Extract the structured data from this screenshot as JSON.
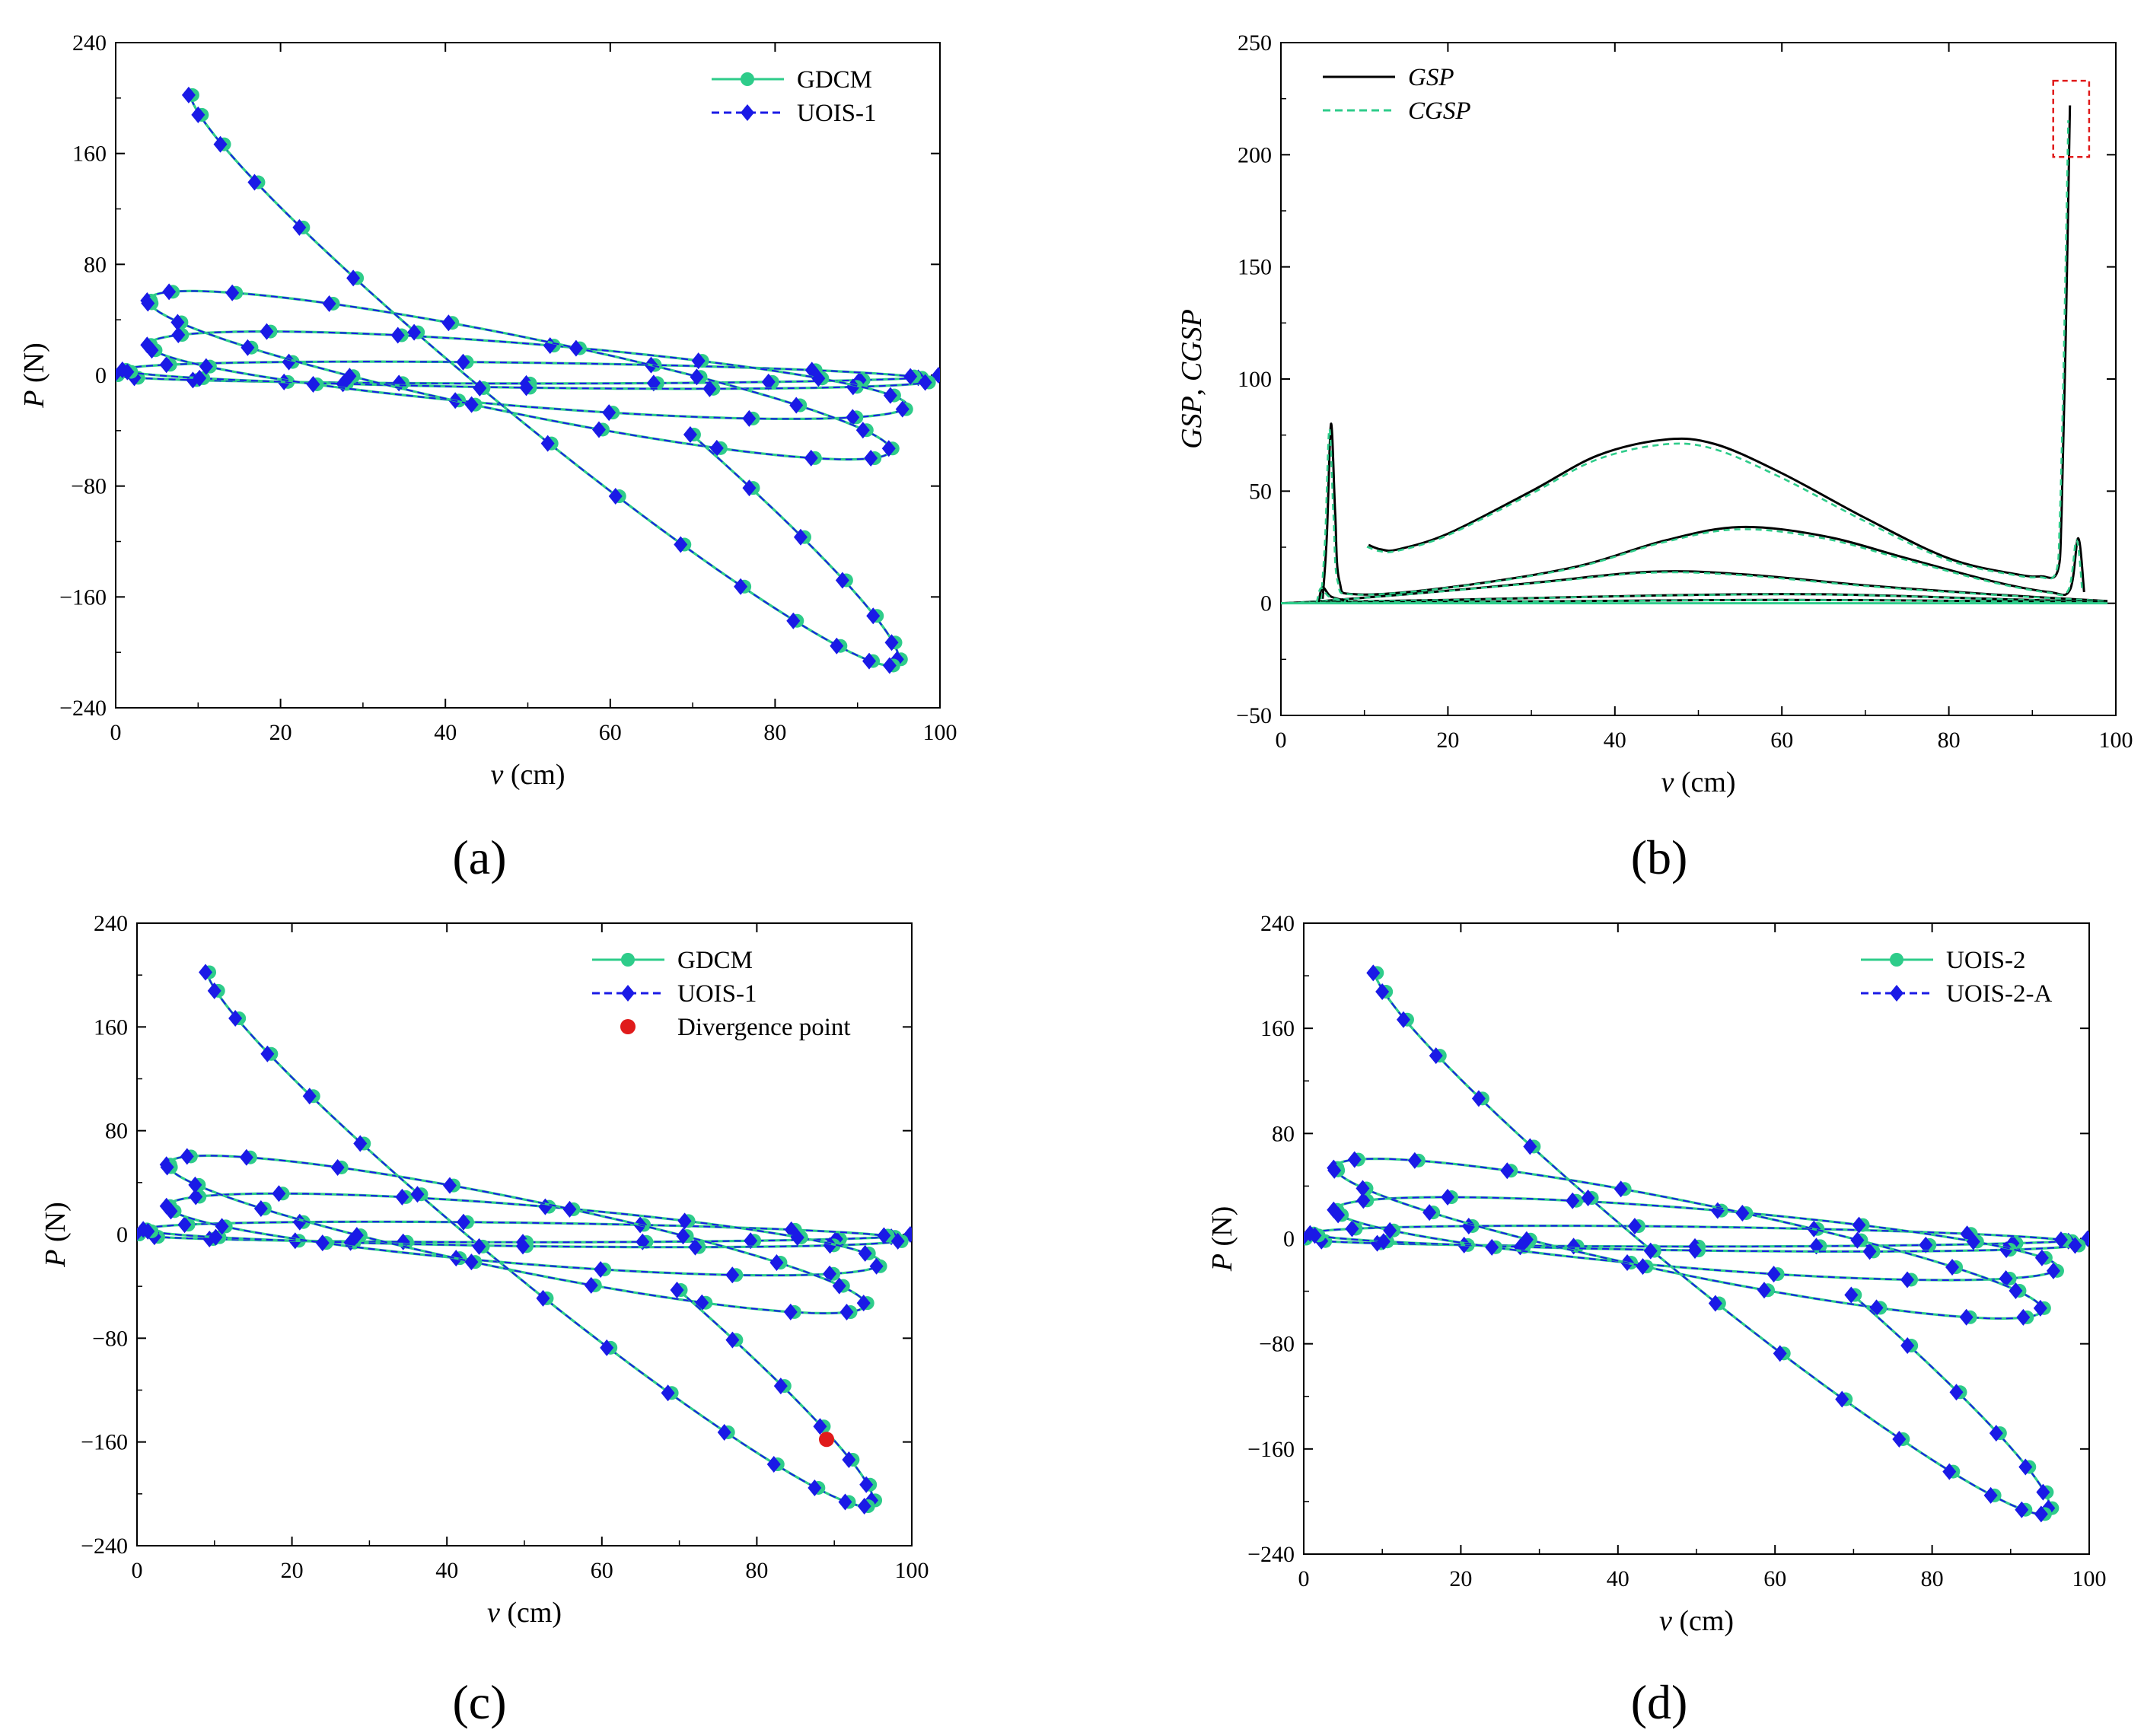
{
  "chart_data": [
    {
      "id": "a",
      "type": "line",
      "panel_label": "(a)",
      "xlabel": {
        "var": "v",
        "unit": " (cm)"
      },
      "ylabel": {
        "var": "P",
        "unit": " (N)"
      },
      "xlim": [
        0,
        100
      ],
      "ylim": [
        -240,
        240
      ],
      "xticks": [
        0,
        20,
        40,
        60,
        80,
        100
      ],
      "yticks": [
        -240,
        -160,
        -80,
        0,
        80,
        160,
        240
      ],
      "ytick_labels": [
        "−240",
        "−160",
        "−80",
        "0",
        "80",
        "160",
        "240"
      ],
      "legend_position": "top-right",
      "series": [
        {
          "name": "GDCM",
          "color": "#2ecc8a",
          "style": "solid",
          "marker": "circle"
        },
        {
          "name": "UOIS-1",
          "color": "#1a1ae6",
          "style": "dashed",
          "marker": "diamond"
        }
      ],
      "hysteresis": {
        "cycles": [
          {
            "v0": 50,
            "A": 50,
            "p": 0,
            "q": 12,
            "ph": 0.2,
            "t0": 3.14159,
            "t1": 6.28318
          },
          {
            "v0": 50,
            "A": 49,
            "p": 4,
            "q": 20,
            "ph": 0.25
          },
          {
            "v0": 50,
            "A": 46,
            "p": 23,
            "q": 60,
            "ph": 0.32
          },
          {
            "v0": 49,
            "A": 45,
            "p": 62,
            "q": 118,
            "ph": 0.52
          },
          {
            "v0": 52,
            "A": 43,
            "p": 205,
            "q": 60,
            "ph": -0.08,
            "t0": 2.0,
            "t1": 6.28318
          }
        ]
      },
      "divergence_point": null
    },
    {
      "id": "b",
      "type": "line",
      "panel_label": "(b)",
      "xlabel": {
        "var": "v",
        "unit": " (cm)"
      },
      "ylabel": {
        "var": "GSP",
        "sep": ", ",
        "var2": "CGSP"
      },
      "xlim": [
        0,
        100
      ],
      "ylim": [
        -50,
        250
      ],
      "xticks": [
        0,
        20,
        40,
        60,
        80,
        100
      ],
      "yticks": [
        -50,
        0,
        50,
        100,
        150,
        200,
        250
      ],
      "ytick_labels": [
        "−50",
        "0",
        "50",
        "100",
        "150",
        "200",
        "250"
      ],
      "legend_position": "top-left",
      "series": [
        {
          "name": "GSP",
          "color": "#000000",
          "style": "solid"
        },
        {
          "name": "CGSP",
          "color": "#2ecc8a",
          "style": "dashed"
        }
      ],
      "curves": [
        {
          "points": [
            [
              10.5,
              26
            ],
            [
              12,
              24
            ],
            [
              14,
              24
            ],
            [
              20,
              31
            ],
            [
              30,
              50
            ],
            [
              38,
              66
            ],
            [
              46,
              73
            ],
            [
              52,
              71
            ],
            [
              60,
              58
            ],
            [
              70,
              38
            ],
            [
              80,
              20
            ],
            [
              88,
              13
            ],
            [
              91,
              12
            ],
            [
              93,
              14
            ],
            [
              93.5,
              40
            ],
            [
              94,
              120
            ],
            [
              94.5,
              222
            ]
          ]
        },
        {
          "points": [
            [
              5,
              2
            ],
            [
              5.5,
              30
            ],
            [
              6,
              80
            ],
            [
              6.5,
              40
            ],
            [
              7,
              10
            ],
            [
              9,
              4
            ],
            [
              20,
              7
            ],
            [
              35,
              16
            ],
            [
              46,
              28
            ],
            [
              55,
              34
            ],
            [
              65,
              30
            ],
            [
              75,
              20
            ],
            [
              85,
              10
            ],
            [
              92,
              5
            ],
            [
              94.5,
              6
            ],
            [
              95.5,
              29
            ],
            [
              96.2,
              5
            ]
          ]
        },
        {
          "points": [
            [
              0,
              0
            ],
            [
              5,
              1
            ],
            [
              15,
              4
            ],
            [
              30,
              9
            ],
            [
              44,
              14
            ],
            [
              55,
              13
            ],
            [
              70,
              8
            ],
            [
              85,
              4
            ],
            [
              99,
              1
            ]
          ]
        },
        {
          "points": [
            [
              3,
              0.5
            ],
            [
              20,
              1.5
            ],
            [
              45,
              3.5
            ],
            [
              65,
              4
            ],
            [
              85,
              2
            ],
            [
              99,
              0.5
            ]
          ]
        },
        {
          "points": [
            [
              1,
              0.2
            ],
            [
              30,
              0.8
            ],
            [
              60,
              1.5
            ],
            [
              90,
              0.8
            ],
            [
              99,
              0.3
            ]
          ]
        },
        {
          "points": [
            [
              4.5,
              0.5
            ],
            [
              5,
              7
            ],
            [
              6,
              3
            ],
            [
              8,
              1
            ]
          ]
        }
      ],
      "highlight_box": {
        "x0": 92.5,
        "x1": 96.8,
        "y0": 199,
        "y1": 233
      }
    },
    {
      "id": "c",
      "type": "line",
      "panel_label": "(c)",
      "xlabel": {
        "var": "v",
        "unit": " (cm)"
      },
      "ylabel": {
        "var": "P",
        "unit": " (N)"
      },
      "xlim": [
        0,
        100
      ],
      "ylim": [
        -240,
        240
      ],
      "xticks": [
        0,
        20,
        40,
        60,
        80,
        100
      ],
      "yticks": [
        -240,
        -160,
        -80,
        0,
        80,
        160,
        240
      ],
      "ytick_labels": [
        "−240",
        "−160",
        "−80",
        "0",
        "80",
        "160",
        "240"
      ],
      "legend_position": "top-right",
      "series": [
        {
          "name": "GDCM",
          "color": "#2ecc8a",
          "style": "solid",
          "marker": "circle"
        },
        {
          "name": "UOIS-1",
          "color": "#1a1ae6",
          "style": "dashed",
          "marker": "diamond"
        },
        {
          "name": "Divergence point",
          "color": "#e01b1b",
          "style": "none",
          "marker": "dot"
        }
      ],
      "hysteresis": {
        "cycles": [
          {
            "v0": 50,
            "A": 50,
            "p": 0,
            "q": 12,
            "ph": 0.2,
            "t0": 3.14159,
            "t1": 6.28318
          },
          {
            "v0": 50,
            "A": 49,
            "p": 4,
            "q": 20,
            "ph": 0.25
          },
          {
            "v0": 50,
            "A": 46,
            "p": 23,
            "q": 60,
            "ph": 0.32
          },
          {
            "v0": 49,
            "A": 45,
            "p": 62,
            "q": 118,
            "ph": 0.52
          },
          {
            "v0": 52,
            "A": 43,
            "p": 205,
            "q": 60,
            "ph": -0.08,
            "t0": 2.0,
            "t1": 6.28318
          }
        ]
      },
      "divergence_point": {
        "v": 89,
        "P": -158
      }
    },
    {
      "id": "d",
      "type": "line",
      "panel_label": "(d)",
      "xlabel": {
        "var": "v",
        "unit": " (cm)"
      },
      "ylabel": {
        "var": "P",
        "unit": " (N)"
      },
      "xlim": [
        0,
        100
      ],
      "ylim": [
        -240,
        240
      ],
      "xticks": [
        0,
        20,
        40,
        60,
        80,
        100
      ],
      "yticks": [
        -240,
        -160,
        -80,
        0,
        80,
        160,
        240
      ],
      "ytick_labels": [
        "−240",
        "−160",
        "−80",
        "0",
        "80",
        "160",
        "240"
      ],
      "legend_position": "top-right",
      "series": [
        {
          "name": "UOIS-2",
          "color": "#2ecc8a",
          "style": "solid",
          "marker": "circle"
        },
        {
          "name": "UOIS-2-A",
          "color": "#1a1ae6",
          "style": "dashed",
          "marker": "diamond"
        }
      ],
      "hysteresis": {
        "cycles": [
          {
            "v0": 50,
            "A": 50,
            "p": 0,
            "q": 12,
            "ph": 0.2,
            "t0": 3.14159,
            "t1": 6.28318
          },
          {
            "v0": 50,
            "A": 49,
            "p": 4,
            "q": 20,
            "ph": 0.25
          },
          {
            "v0": 50,
            "A": 46,
            "p": 23,
            "q": 60,
            "ph": 0.32
          },
          {
            "v0": 49,
            "A": 45,
            "p": 62,
            "q": 118,
            "ph": 0.52
          },
          {
            "v0": 52,
            "A": 43,
            "p": 205,
            "q": 60,
            "ph": -0.08,
            "t0": 2.0,
            "t1": 6.28318
          }
        ]
      },
      "divergence_point": null
    }
  ]
}
